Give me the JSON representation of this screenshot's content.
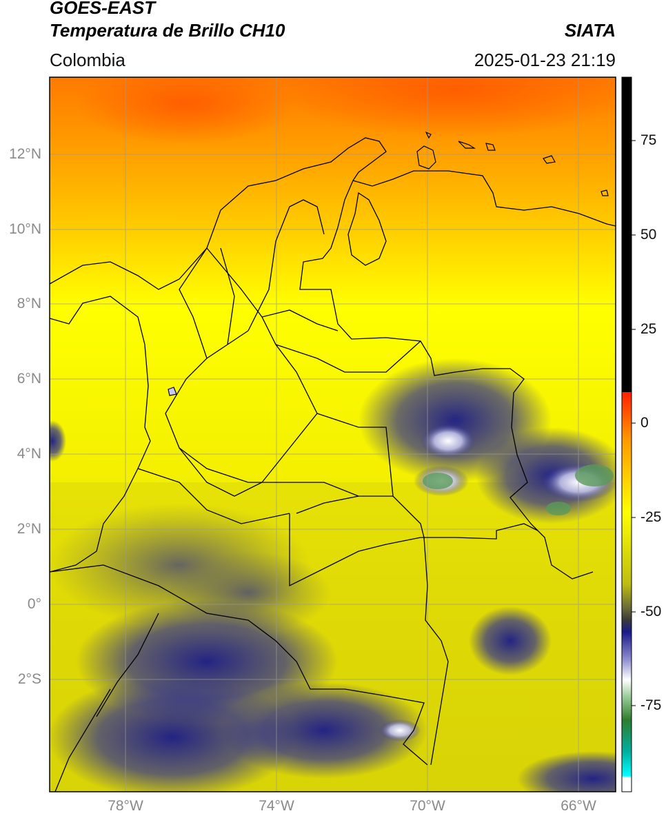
{
  "header": {
    "satellite": "GOES-EAST",
    "product": "Temperatura de Brillo CH10",
    "organization": "SIATA",
    "region": "Colombia",
    "datetime": "2025-01-23 21:19"
  },
  "map": {
    "lat_labels": [
      "12°N",
      "10°N",
      "8°N",
      "6°N",
      "4°N",
      "2°N",
      "0°",
      "2°S"
    ],
    "lon_labels": [
      "78°W",
      "74°W",
      "70°W",
      "66°W"
    ],
    "extent": {
      "lon_min": -80,
      "lon_max": -65,
      "lat_min": -5,
      "lat_max": 14
    }
  },
  "colorbar": {
    "tick_labels": [
      "75",
      "50",
      "25",
      "0",
      "-25",
      "-50",
      "-75"
    ],
    "min": -100,
    "max": 90,
    "colors": {
      "warm_top": "#000000",
      "red": "#ff1f00",
      "orange": "#ff9a00",
      "yellow": "#ffff00",
      "olive": "#bdbd10",
      "dark_gray": "#4a4a4a",
      "navy": "#1a1a8a",
      "white": "#ffffff",
      "green": "#2e7d2e",
      "teal": "#00b0a0",
      "cyan": "#00ffff"
    }
  }
}
